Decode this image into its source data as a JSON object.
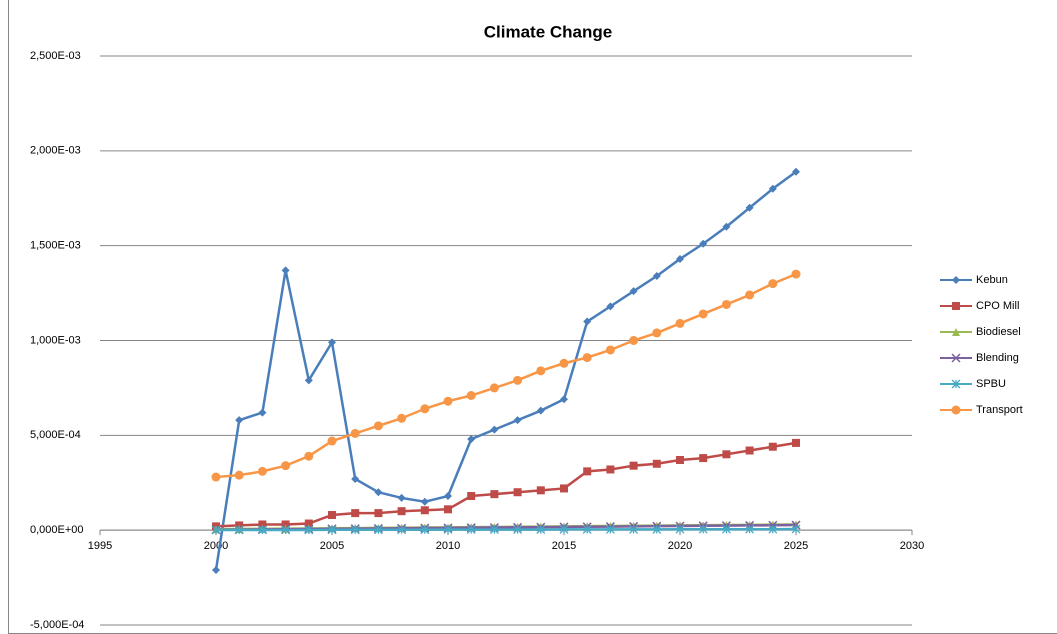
{
  "chart_data": {
    "type": "line",
    "title": "Climate Change",
    "x": [
      2000,
      2001,
      2002,
      2003,
      2004,
      2005,
      2006,
      2007,
      2008,
      2009,
      2010,
      2011,
      2012,
      2013,
      2014,
      2015,
      2016,
      2017,
      2018,
      2019,
      2020,
      2021,
      2022,
      2023,
      2024,
      2025
    ],
    "xlim": [
      1995,
      2030
    ],
    "xticks": [
      1995,
      2000,
      2005,
      2010,
      2015,
      2020,
      2025,
      2030
    ],
    "ylim": [
      -0.0005,
      0.0025
    ],
    "yticks": [
      {
        "value": -0.0005,
        "label": "-5,000E-04"
      },
      {
        "value": 0,
        "label": "0,000E+00"
      },
      {
        "value": 0.0005,
        "label": "5,000E-04"
      },
      {
        "value": 0.001,
        "label": "1,000E-03"
      },
      {
        "value": 0.0015,
        "label": "1,500E-03"
      },
      {
        "value": 0.002,
        "label": "2,000E-03"
      },
      {
        "value": 0.0025,
        "label": "2,500E-03"
      }
    ],
    "grid": true,
    "legend": "right",
    "series": [
      {
        "name": "Kebun",
        "color": "#4a7ebb",
        "marker": "diamond",
        "values": [
          -0.00021,
          0.00058,
          0.00062,
          0.00137,
          0.00079,
          0.00099,
          0.00027,
          0.0002,
          0.00017,
          0.00015,
          0.00018,
          0.00048,
          0.00053,
          0.00058,
          0.00063,
          0.00069,
          0.0011,
          0.00118,
          0.00126,
          0.00134,
          0.00143,
          0.00151,
          0.0016,
          0.0017,
          0.0018,
          0.00189
        ]
      },
      {
        "name": "CPO Mill",
        "color": "#be4b48",
        "marker": "square",
        "values": [
          2e-05,
          2.5e-05,
          3e-05,
          3e-05,
          3.5e-05,
          8e-05,
          9e-05,
          9e-05,
          0.0001,
          0.000105,
          0.00011,
          0.00018,
          0.00019,
          0.0002,
          0.00021,
          0.00022,
          0.00031,
          0.00032,
          0.00034,
          0.00035,
          0.00037,
          0.00038,
          0.0004,
          0.00042,
          0.00044,
          0.00046
        ]
      },
      {
        "name": "Biodiesel",
        "color": "#98b954",
        "marker": "triangle",
        "values": [
          5e-06,
          6e-06,
          7e-06,
          8e-06,
          9e-06,
          1e-05,
          1.1e-05,
          1.2e-05,
          1.3e-05,
          1.4e-05,
          1.5e-05,
          1.6e-05,
          1.7e-05,
          1.8e-05,
          1.9e-05,
          2e-05,
          2.1e-05,
          2.2e-05,
          2.3e-05,
          2.4e-05,
          2.5e-05,
          2.6e-05,
          2.7e-05,
          2.8e-05,
          2.9e-05,
          3e-05
        ]
      },
      {
        "name": "Blending",
        "color": "#7d60a0",
        "marker": "cross",
        "values": [
          2e-06,
          3e-06,
          4e-06,
          5e-06,
          6e-06,
          7e-06,
          8e-06,
          9e-06,
          1e-05,
          1.1e-05,
          1.2e-05,
          1.3e-05,
          1.4e-05,
          1.5e-05,
          1.6e-05,
          1.7e-05,
          1.8e-05,
          1.9e-05,
          2e-05,
          2.1e-05,
          2.2e-05,
          2.3e-05,
          2.4e-05,
          2.5e-05,
          2.6e-05,
          2.7e-05
        ]
      },
      {
        "name": "SPBU",
        "color": "#46aac5",
        "marker": "star",
        "values": [
          1e-06,
          1e-06,
          1e-06,
          1e-06,
          1e-06,
          2e-06,
          2e-06,
          2e-06,
          2e-06,
          2e-06,
          3e-06,
          3e-06,
          3e-06,
          3e-06,
          3e-06,
          4e-06,
          4e-06,
          4e-06,
          4e-06,
          4e-06,
          5e-06,
          5e-06,
          5e-06,
          5e-06,
          5e-06,
          6e-06
        ]
      },
      {
        "name": "Transport",
        "color": "#f79646",
        "marker": "circle",
        "values": [
          0.00028,
          0.00029,
          0.00031,
          0.00034,
          0.00039,
          0.00047,
          0.00051,
          0.00055,
          0.00059,
          0.00064,
          0.00068,
          0.00071,
          0.00075,
          0.00079,
          0.00084,
          0.00088,
          0.00091,
          0.00095,
          0.001,
          0.00104,
          0.00109,
          0.00114,
          0.00119,
          0.00124,
          0.0013,
          0.00135
        ]
      }
    ]
  }
}
